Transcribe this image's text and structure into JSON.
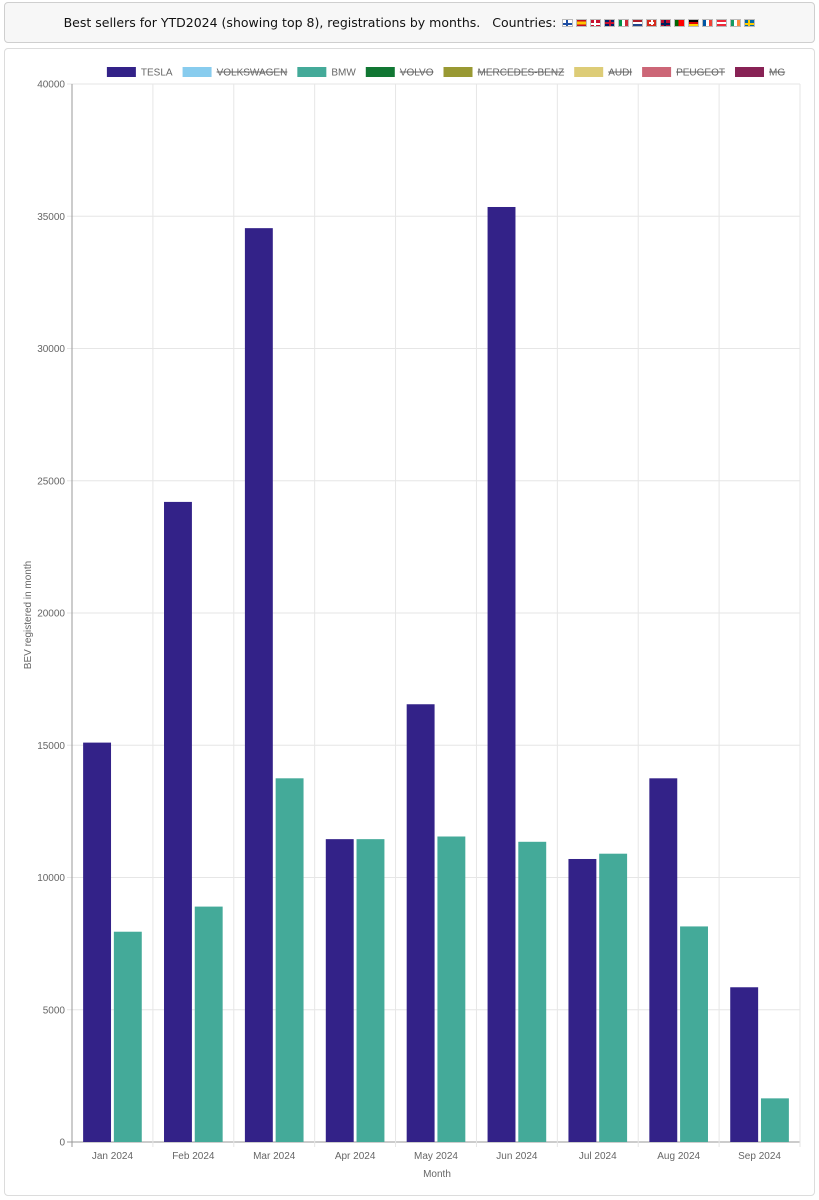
{
  "header": {
    "title": "Best sellers for YTD2024 (showing top 8), registrations by months.",
    "countries_label": "Countries:",
    "flags": [
      {
        "name": "finland-flag",
        "bg": "#ffffff",
        "stripe": "#1f4ea3",
        "style": "nordic"
      },
      {
        "name": "spain-flag",
        "bg": "#c60b1e",
        "stripe": "#ffc400",
        "style": "hband"
      },
      {
        "name": "denmark-flag",
        "bg": "#c8102e",
        "stripe": "#ffffff",
        "style": "nordic"
      },
      {
        "name": "uk-flag",
        "bg": "#012169",
        "stripe": "#c8102e",
        "style": "cross"
      },
      {
        "name": "italy-flag",
        "bg": "#ffffff",
        "c1": "#009246",
        "c3": "#ce2b37",
        "style": "vtri"
      },
      {
        "name": "netherlands-flag",
        "bg": "#ffffff",
        "c1": "#ae1c28",
        "c3": "#21468b",
        "style": "htri"
      },
      {
        "name": "switzerland-flag",
        "bg": "#d52b1e",
        "stripe": "#ffffff",
        "style": "plus"
      },
      {
        "name": "norway-flag",
        "bg": "#ba0c2f",
        "stripe": "#00205b",
        "style": "nordic"
      },
      {
        "name": "portugal-flag",
        "bg": "#ff0000",
        "c1": "#006600",
        "style": "split"
      },
      {
        "name": "germany-flag",
        "bg": "#dd0000",
        "c1": "#000000",
        "c3": "#ffce00",
        "style": "htri"
      },
      {
        "name": "france-flag",
        "bg": "#ffffff",
        "c1": "#0055a4",
        "c3": "#ef4135",
        "style": "vtri"
      },
      {
        "name": "austria-flag",
        "bg": "#ffffff",
        "c1": "#ed2939",
        "c3": "#ed2939",
        "style": "htri"
      },
      {
        "name": "ireland-flag",
        "bg": "#ffffff",
        "c1": "#169b62",
        "c3": "#ff883e",
        "style": "vtri"
      },
      {
        "name": "sweden-flag",
        "bg": "#006aa7",
        "stripe": "#fecc00",
        "style": "nordic"
      }
    ]
  },
  "chart_data": {
    "type": "bar",
    "title": "",
    "xlabel": "Month",
    "ylabel": "BEV registered in month",
    "ylim": [
      0,
      40000
    ],
    "yticks": [
      0,
      5000,
      10000,
      15000,
      20000,
      25000,
      30000,
      35000,
      40000
    ],
    "grid": true,
    "legend_position": "top",
    "categories": [
      "Jan 2024",
      "Feb 2024",
      "Mar 2024",
      "Apr 2024",
      "May 2024",
      "Jun 2024",
      "Jul 2024",
      "Aug 2024",
      "Sep 2024"
    ],
    "legend": [
      {
        "name": "TESLA",
        "color": "#332288",
        "hidden": false
      },
      {
        "name": "VOLKSWAGEN",
        "color": "#88ccee",
        "hidden": true
      },
      {
        "name": "BMW",
        "color": "#44aa99",
        "hidden": false
      },
      {
        "name": "VOLVO",
        "color": "#117733",
        "hidden": true
      },
      {
        "name": "MERCEDES-BENZ",
        "color": "#999933",
        "hidden": true
      },
      {
        "name": "AUDI",
        "color": "#ddcc77",
        "hidden": true
      },
      {
        "name": "PEUGEOT",
        "color": "#cc6677",
        "hidden": true
      },
      {
        "name": "MG",
        "color": "#882255",
        "hidden": true
      }
    ],
    "series": [
      {
        "name": "TESLA",
        "color": "#332288",
        "values": [
          15100,
          24200,
          34550,
          11450,
          16550,
          35350,
          10700,
          13750,
          5850
        ]
      },
      {
        "name": "BMW",
        "color": "#44aa99",
        "values": [
          7950,
          8900,
          13750,
          11450,
          11550,
          11350,
          10900,
          8150,
          1650
        ]
      }
    ]
  }
}
